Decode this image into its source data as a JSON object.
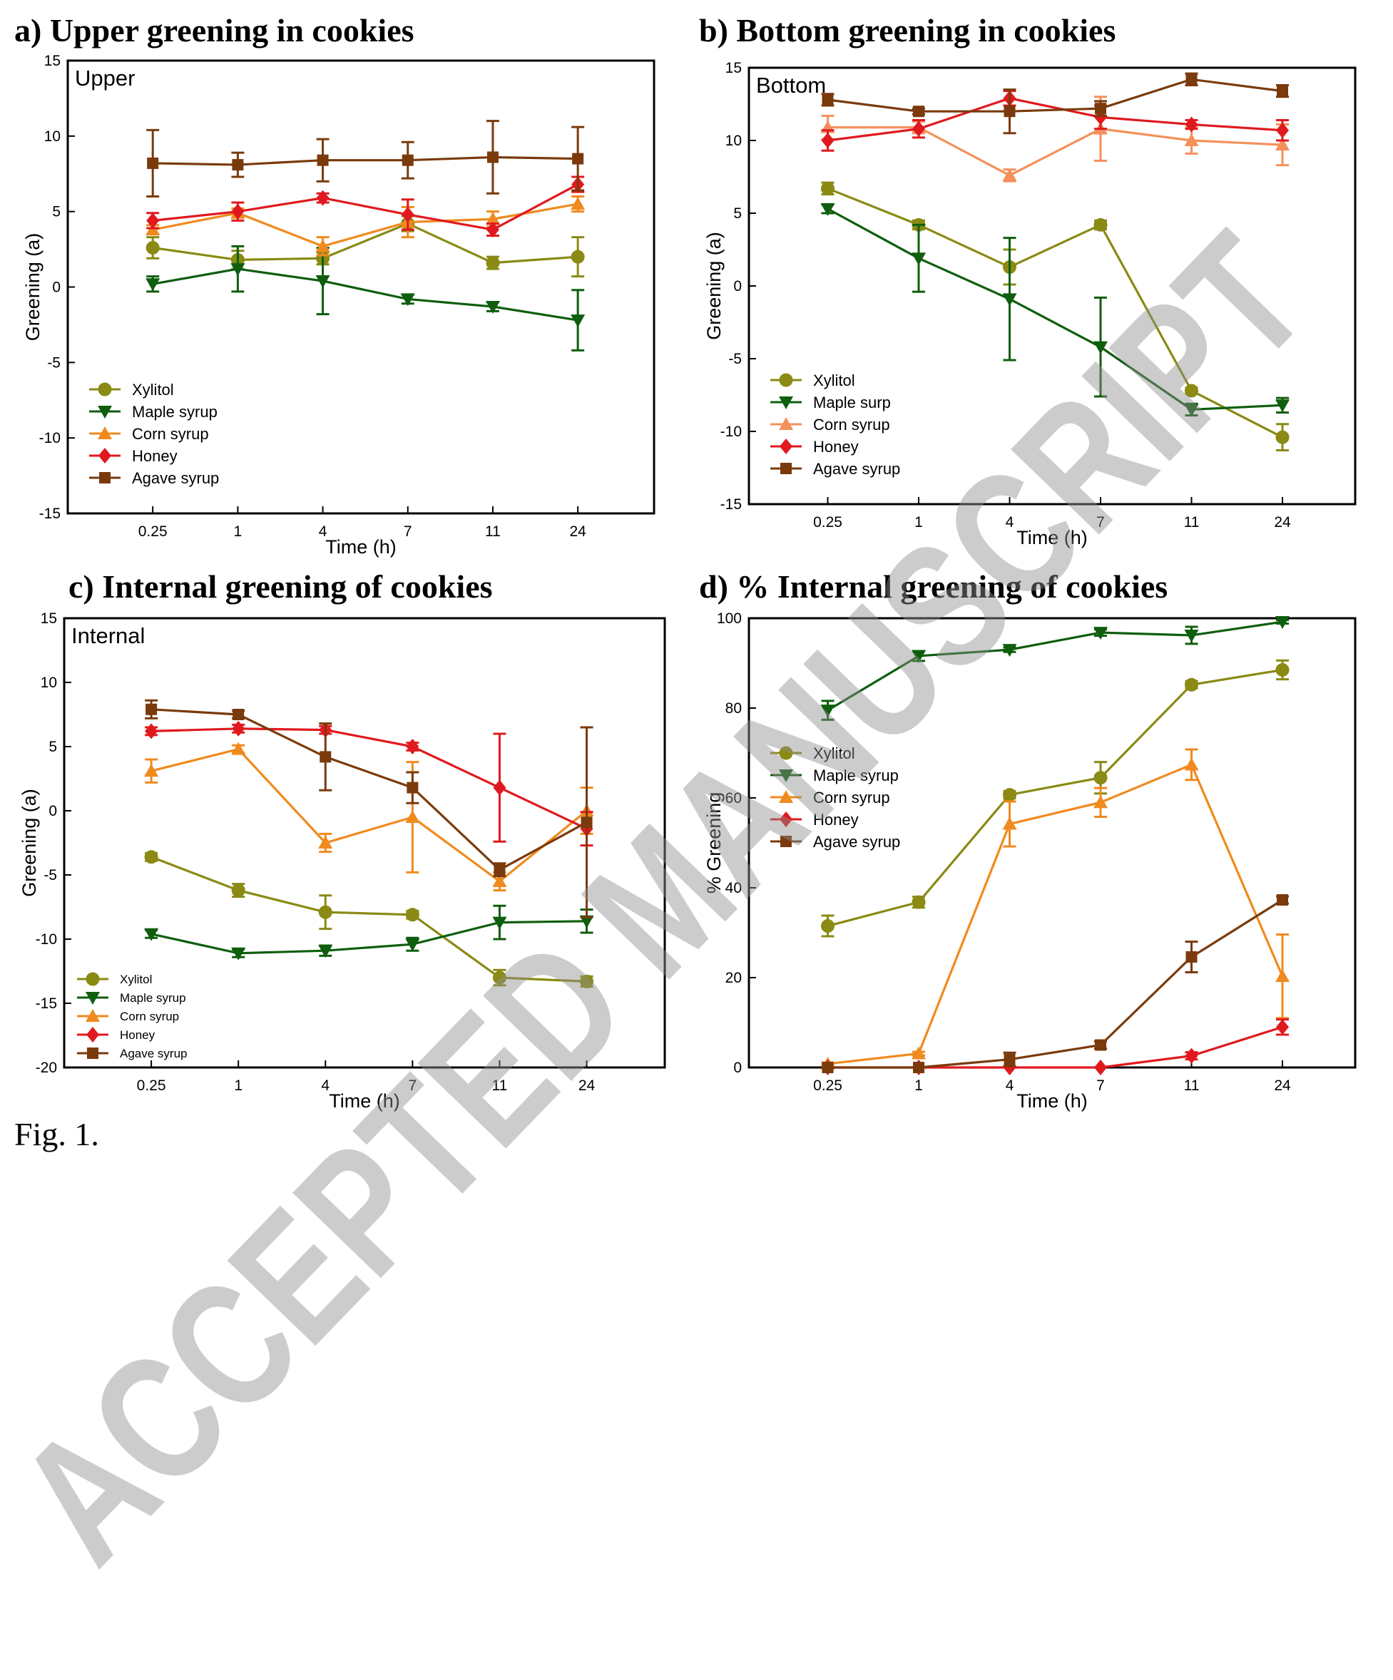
{
  "figure_caption": "Fig. 1.",
  "watermark": "ACCEPTED MANUSCRIPT",
  "panels": {
    "a": {
      "title": "a) Upper greening in cookies"
    },
    "b": {
      "title": "b) Bottom greening in cookies"
    },
    "c": {
      "title": "c) Internal greening of cookies"
    },
    "d": {
      "title": "d) % Internal greening of cookies"
    }
  },
  "colors": {
    "xylitol": "#8a8a14",
    "maple": "#0e5e0e",
    "corn": "#f08a1e",
    "honey": "#e0191e",
    "agave": "#7a3a0c"
  },
  "chart_data": [
    {
      "id": "a",
      "type": "line",
      "title": "a) Upper greening in cookies",
      "inner_label": "Upper",
      "xlabel": "Time (h)",
      "ylabel": "Greening (a)",
      "categories": [
        "0.25",
        "1",
        "4",
        "7",
        "11",
        "24"
      ],
      "ylim": [
        -15,
        15
      ],
      "yticks": [
        -15,
        -10,
        -5,
        0,
        5,
        10,
        15
      ],
      "legend_position": "lower-left",
      "legend_size": "large",
      "series": [
        {
          "name": "Xylitol",
          "marker": "circle",
          "color": "#8a8a14",
          "values": [
            2.6,
            1.8,
            1.9,
            4.2,
            1.6,
            2.0
          ],
          "errors": [
            0.7,
            0.6,
            0.4,
            0.5,
            0.4,
            1.3
          ]
        },
        {
          "name": "Maple syrup",
          "marker": "triangle-down",
          "color": "#0e5e0e",
          "values": [
            0.2,
            1.2,
            0.4,
            -0.8,
            -1.3,
            -2.2
          ],
          "errors": [
            0.5,
            1.5,
            2.2,
            0.3,
            0.3,
            2.0
          ]
        },
        {
          "name": "Corn syrup",
          "marker": "triangle-up",
          "color": "#f08a1e",
          "values": [
            3.8,
            4.9,
            2.7,
            4.3,
            4.5,
            5.5
          ],
          "errors": [
            0.3,
            0.3,
            0.6,
            1.0,
            0.5,
            0.5
          ]
        },
        {
          "name": "Honey",
          "marker": "diamond",
          "color": "#e0191e",
          "values": [
            4.4,
            5.0,
            5.9,
            4.8,
            3.8,
            6.8
          ],
          "errors": [
            0.5,
            0.6,
            0.3,
            1.0,
            0.4,
            0.5
          ]
        },
        {
          "name": "Agave syrup",
          "marker": "square",
          "color": "#7a3a0c",
          "values": [
            8.2,
            8.1,
            8.4,
            8.4,
            8.6,
            8.5
          ],
          "errors": [
            2.2,
            0.8,
            1.4,
            1.2,
            2.4,
            2.1
          ]
        }
      ]
    },
    {
      "id": "b",
      "type": "line",
      "title": "b) Bottom greening in cookies",
      "inner_label": "Bottom",
      "xlabel": "Time (h)",
      "ylabel": "Greening (a)",
      "categories": [
        "0.25",
        "1",
        "4",
        "7",
        "11",
        "24"
      ],
      "ylim": [
        -15,
        15
      ],
      "yticks": [
        -15,
        -10,
        -5,
        0,
        5,
        10,
        15
      ],
      "legend_position": "lower-left",
      "legend_size": "large",
      "series": [
        {
          "name": "Xylitol",
          "marker": "circle",
          "color": "#8a8a14",
          "values": [
            6.7,
            4.2,
            1.3,
            4.2,
            -7.2,
            -10.4
          ],
          "errors": [
            0.4,
            0.3,
            1.2,
            0.3,
            0.2,
            0.9
          ]
        },
        {
          "name": "Maple surp",
          "marker": "triangle-down",
          "color": "#0e5e0e",
          "values": [
            5.3,
            1.9,
            -0.9,
            -4.2,
            -8.5,
            -8.2
          ],
          "errors": [
            0.3,
            2.3,
            4.2,
            3.4,
            0.4,
            0.5
          ]
        },
        {
          "name": "Corn syrup",
          "marker": "triangle-up",
          "color": "#f4915a",
          "values": [
            10.9,
            10.9,
            7.6,
            10.8,
            10.0,
            9.7
          ],
          "errors": [
            0.8,
            0.4,
            0.4,
            2.2,
            0.9,
            1.4
          ]
        },
        {
          "name": "Honey",
          "marker": "diamond",
          "color": "#e0191e",
          "values": [
            10.0,
            10.8,
            12.9,
            11.6,
            11.1,
            10.7
          ],
          "errors": [
            0.7,
            0.6,
            0.5,
            0.8,
            0.3,
            0.7
          ]
        },
        {
          "name": "Agave syrup",
          "marker": "square",
          "color": "#7a3a0c",
          "values": [
            12.8,
            12.0,
            12.0,
            12.2,
            14.2,
            13.4
          ],
          "errors": [
            0.4,
            0.2,
            1.5,
            0.5,
            0.4,
            0.4
          ]
        }
      ]
    },
    {
      "id": "c",
      "type": "line",
      "title": "c) Internal greening of cookies",
      "inner_label": "Internal",
      "xlabel": "Time (h)",
      "ylabel": "Greening (a)",
      "categories": [
        "0.25",
        "1",
        "4",
        "7",
        "11",
        "24"
      ],
      "ylim": [
        -20,
        15
      ],
      "yticks": [
        -20,
        -15,
        -10,
        -5,
        0,
        5,
        10,
        15
      ],
      "legend_position": "lower-left",
      "legend_size": "small",
      "series": [
        {
          "name": "Xylitol",
          "marker": "circle",
          "color": "#8a8a14",
          "values": [
            -3.6,
            -6.2,
            -7.9,
            -8.1,
            -13.0,
            -13.3
          ],
          "errors": [
            0.3,
            0.5,
            1.3,
            0.3,
            0.6,
            0.4
          ]
        },
        {
          "name": "Maple syrup",
          "marker": "triangle-down",
          "color": "#0e5e0e",
          "values": [
            -9.6,
            -11.1,
            -10.9,
            -10.4,
            -8.7,
            -8.6
          ],
          "errors": [
            0.3,
            0.3,
            0.4,
            0.5,
            1.3,
            0.9
          ]
        },
        {
          "name": "Corn syrup",
          "marker": "triangle-up",
          "color": "#f08a1e",
          "values": [
            3.1,
            4.8,
            -2.5,
            -0.5,
            -5.5,
            0.0
          ],
          "errors": [
            0.9,
            0.3,
            0.7,
            4.3,
            0.7,
            1.8
          ]
        },
        {
          "name": "Honey",
          "marker": "diamond",
          "color": "#e0191e",
          "values": [
            6.2,
            6.4,
            6.3,
            5.0,
            1.8,
            -1.4
          ],
          "errors": [
            0.3,
            0.3,
            0.3,
            0.3,
            4.2,
            1.3
          ]
        },
        {
          "name": "Agave syrup",
          "marker": "square",
          "color": "#7a3a0c",
          "values": [
            7.9,
            7.5,
            4.2,
            1.8,
            -4.6,
            -0.9
          ],
          "errors": [
            0.7,
            0.3,
            2.6,
            1.2,
            0.5,
            7.4
          ]
        }
      ]
    },
    {
      "id": "d",
      "type": "line",
      "title": "d) % Internal greening of cookies",
      "inner_label": "",
      "xlabel": "Time (h)",
      "ylabel": "% Greening",
      "categories": [
        "0.25",
        "1",
        "4",
        "7",
        "11",
        "24"
      ],
      "ylim": [
        0,
        100
      ],
      "yticks": [
        0,
        20,
        40,
        60,
        80,
        100
      ],
      "legend_position": "center-left",
      "legend_size": "large",
      "series": [
        {
          "name": "Xylitol",
          "marker": "circle",
          "color": "#8a8a14",
          "values": [
            31.5,
            36.8,
            60.7,
            64.5,
            85.2,
            88.5
          ],
          "errors": [
            2.3,
            1.2,
            0.8,
            3.5,
            0.8,
            2.1
          ]
        },
        {
          "name": "Maple syrup",
          "marker": "triangle-down",
          "color": "#0e5e0e",
          "values": [
            79.5,
            91.6,
            93.0,
            96.8,
            96.2,
            99.2
          ],
          "errors": [
            2.1,
            1.1,
            0.5,
            0.7,
            1.9,
            0.4
          ]
        },
        {
          "name": "Corn syrup",
          "marker": "triangle-up",
          "color": "#f08a1e",
          "values": [
            0.8,
            3.1,
            54.2,
            59.0,
            67.4,
            20.3
          ],
          "errors": [
            0.3,
            0.4,
            5.0,
            3.2,
            3.4,
            9.3
          ]
        },
        {
          "name": "Honey",
          "marker": "diamond",
          "color": "#e0191e",
          "values": [
            0.0,
            0.0,
            0.0,
            0.0,
            2.6,
            9.0
          ],
          "errors": [
            0.0,
            0.0,
            0.0,
            0.0,
            0.8,
            1.7
          ]
        },
        {
          "name": "Agave syrup",
          "marker": "square",
          "color": "#7a3a0c",
          "values": [
            0.0,
            0.0,
            1.8,
            5.0,
            24.6,
            37.3
          ],
          "errors": [
            0.0,
            0.0,
            1.5,
            0.8,
            3.4,
            0.8
          ]
        }
      ]
    }
  ]
}
